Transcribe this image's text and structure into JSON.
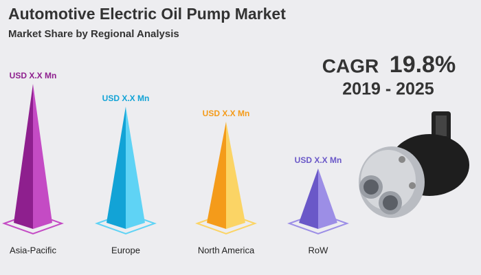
{
  "header": {
    "title": "Automotive Electric Oil Pump Market",
    "subtitle": "Market Share by Regional Analysis"
  },
  "cagr": {
    "label": "CAGR",
    "value": "19.8%",
    "period": "2019 - 2025"
  },
  "regions": [
    {
      "name": "Asia-Pacific",
      "label": "USD X.X Mn",
      "color": "#8e1f8e",
      "light": "#c44bc4"
    },
    {
      "name": "Europe",
      "label": "USD X.X Mn",
      "color": "#12a3d6",
      "light": "#5fd3f5"
    },
    {
      "name": "North America",
      "label": "USD X.X Mn",
      "color": "#f49b1a",
      "light": "#fbd465"
    },
    {
      "name": "RoW",
      "label": "USD X.X Mn",
      "color": "#6a58c8",
      "light": "#9c8ee6"
    }
  ]
}
